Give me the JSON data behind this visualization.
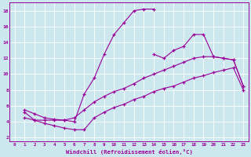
{
  "title": "",
  "xlabel": "Windchill (Refroidissement éolien,°C)",
  "bg_color": "#cce8ee",
  "line_color": "#990099",
  "xlim": [
    -0.5,
    23.5
  ],
  "ylim": [
    1.5,
    19.0
  ],
  "xticks": [
    0,
    1,
    2,
    3,
    4,
    5,
    6,
    7,
    8,
    9,
    10,
    11,
    12,
    13,
    14,
    15,
    16,
    17,
    18,
    19,
    20,
    21,
    22,
    23
  ],
  "yticks": [
    2,
    4,
    6,
    8,
    10,
    12,
    14,
    16,
    18
  ],
  "grid_color": "#ffffff",
  "curves": [
    {
      "x": [
        1,
        2,
        3,
        4,
        5,
        6,
        7,
        8,
        9,
        10,
        11,
        12,
        13,
        14
      ],
      "y": [
        5.2,
        4.2,
        4.2,
        4.2,
        4.2,
        4.0,
        7.5,
        9.5,
        12.5,
        15.0,
        16.5,
        18.0,
        18.2,
        18.2
      ]
    },
    {
      "x": [
        14,
        15,
        16,
        17,
        18,
        19,
        20,
        21,
        22,
        23
      ],
      "y": [
        12.5,
        12.0,
        13.0,
        13.5,
        15.0,
        15.0,
        12.2,
        12.0,
        11.8,
        8.5
      ]
    },
    {
      "x": [
        1,
        2,
        3,
        4,
        5,
        6,
        7,
        8,
        9,
        10,
        11,
        12,
        13,
        14,
        15,
        16,
        17,
        18,
        19,
        20,
        21,
        22,
        23
      ],
      "y": [
        5.5,
        5.0,
        4.5,
        4.3,
        4.2,
        4.5,
        5.5,
        6.5,
        7.2,
        7.8,
        8.2,
        8.8,
        9.5,
        10.0,
        10.5,
        11.0,
        11.5,
        12.0,
        12.2,
        12.2,
        12.0,
        11.8,
        8.5
      ]
    },
    {
      "x": [
        1,
        2,
        3,
        4,
        5,
        6,
        7,
        8,
        9,
        10,
        11,
        12,
        13,
        14,
        15,
        16,
        17,
        18,
        19,
        20,
        21,
        22,
        23
      ],
      "y": [
        4.5,
        4.2,
        3.8,
        3.5,
        3.2,
        3.0,
        3.0,
        4.5,
        5.2,
        5.8,
        6.2,
        6.8,
        7.2,
        7.8,
        8.2,
        8.5,
        9.0,
        9.5,
        9.8,
        10.2,
        10.5,
        10.8,
        8.0
      ]
    }
  ]
}
